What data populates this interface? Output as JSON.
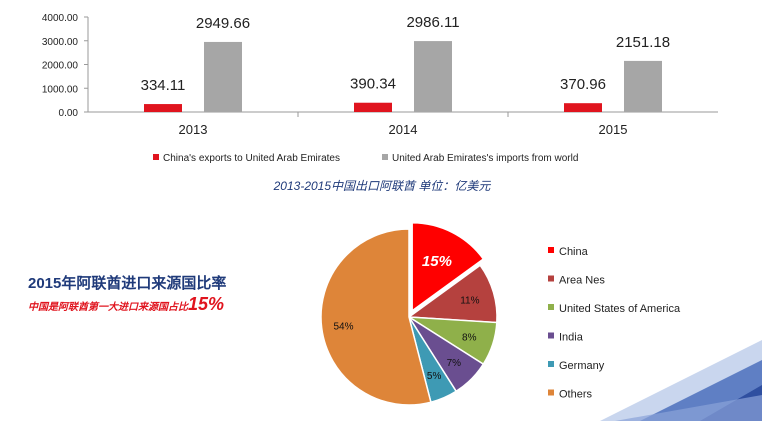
{
  "chart_data": [
    {
      "type": "bar",
      "categories": [
        "2013",
        "2014",
        "2015"
      ],
      "series": [
        {
          "name": "China's exports to United Arab Emirates",
          "color": "#e0141e",
          "values": [
            334.11,
            390.34,
            370.96
          ]
        },
        {
          "name": "United Arab Emirates's imports from world",
          "color": "#a6a6a6",
          "values": [
            2949.66,
            2986.11,
            2151.18
          ]
        }
      ],
      "value_labels": [
        [
          "334.11",
          "390.34",
          "370.96"
        ],
        [
          "2949.66",
          "2986.11",
          "2151.18"
        ]
      ],
      "ylim": [
        0,
        4000
      ],
      "yticks": [
        "0.00",
        "1000.00",
        "2000.00",
        "3000.00",
        "4000.00"
      ],
      "legend": "bottom",
      "caption": "2013-2015中国出口阿联酋   单位：亿美元"
    },
    {
      "type": "pie",
      "categories": [
        "China",
        "Area Nes",
        "United States of America",
        "India",
        "Germany",
        "Others"
      ],
      "values": [
        15,
        11,
        8,
        7,
        5,
        54
      ],
      "labels": [
        "15%",
        "11%",
        "8%",
        "7%",
        "5%",
        "54%"
      ],
      "colors": [
        "#ff0000",
        "#b5413e",
        "#8fb04a",
        "#6a4e90",
        "#3e9ab4",
        "#de8539"
      ],
      "legend": "right"
    }
  ],
  "side_panel": {
    "title": "2015年阿联酋进口来源国比率",
    "subtitle_prefix": "中国是阿联酋第一大进口来源国占比",
    "subtitle_value": "15%"
  }
}
